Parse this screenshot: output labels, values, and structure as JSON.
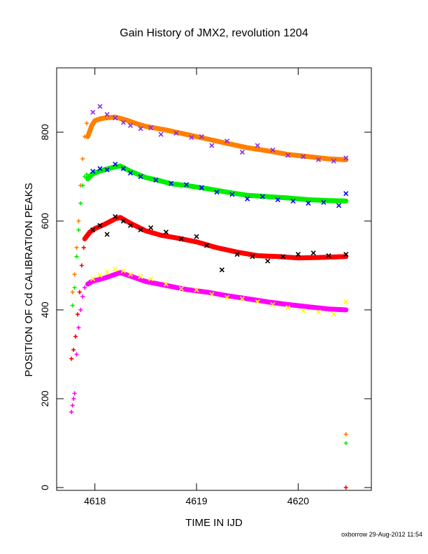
{
  "chart_data": {
    "type": "scatter",
    "title": "Gain History of JMX2, revolution 1204",
    "xlabel": "TIME IN IJD",
    "ylabel": "POSITION OF Cd CALIBRATION PEAKS",
    "footer": "oxborrow 29-Aug-2012 11:54",
    "xlim": [
      4617.72,
      4620.72
    ],
    "ylim": [
      0,
      950
    ],
    "x_ticks": [
      4618,
      4619,
      4620
    ],
    "x_tick_labels": [
      "4618",
      "4619",
      "4620"
    ],
    "y_ticks": [
      0,
      200,
      400,
      600,
      800
    ],
    "y_tick_labels": [
      "0",
      "200",
      "400",
      "600",
      "800"
    ],
    "grid": false,
    "legend": "none",
    "series": [
      {
        "color": "#ff8000",
        "marker": "line",
        "x": [
          4617.93,
          4617.97,
          4618.0,
          4618.05,
          4618.1,
          4618.2,
          4618.3,
          4618.4,
          4618.5,
          4618.7,
          4618.9,
          4619.1,
          4619.3,
          4619.5,
          4619.7,
          4619.9,
          4620.1,
          4620.3,
          4620.47
        ],
        "y": [
          790,
          815,
          826,
          830,
          832,
          834,
          828,
          820,
          813,
          805,
          795,
          785,
          775,
          765,
          758,
          750,
          745,
          740,
          738
        ]
      },
      {
        "color": "#8a2be2",
        "marker": "x",
        "x": [
          4617.98,
          4618.05,
          4618.12,
          4618.2,
          4618.28,
          4618.35,
          4618.45,
          4618.55,
          4618.65,
          4618.8,
          4618.95,
          4619.05,
          4619.15,
          4619.3,
          4619.45,
          4619.6,
          4619.75,
          4619.9,
          4620.05,
          4620.2,
          4620.35,
          4620.47
        ],
        "y": [
          845,
          858,
          840,
          832,
          822,
          815,
          808,
          810,
          795,
          798,
          788,
          790,
          770,
          780,
          755,
          770,
          760,
          748,
          745,
          738,
          735,
          742
        ]
      },
      {
        "color": "#00ee00",
        "marker": "line",
        "x": [
          4617.93,
          4617.97,
          4618.02,
          4618.1,
          4618.2,
          4618.25,
          4618.35,
          4618.5,
          4618.6,
          4618.75,
          4618.9,
          4619.1,
          4619.3,
          4619.5,
          4619.7,
          4619.9,
          4620.1,
          4620.3,
          4620.47
        ],
        "y": [
          695,
          705,
          710,
          716,
          722,
          724,
          712,
          698,
          693,
          684,
          680,
          673,
          665,
          658,
          655,
          652,
          648,
          646,
          645
        ]
      },
      {
        "color": "#0000ff",
        "marker": "x",
        "x": [
          4617.98,
          4618.05,
          4618.12,
          4618.2,
          4618.28,
          4618.35,
          4618.45,
          4618.6,
          4618.75,
          4618.9,
          4619.05,
          4619.2,
          4619.35,
          4619.5,
          4619.65,
          4619.8,
          4619.95,
          4620.1,
          4620.25,
          4620.4,
          4620.47
        ],
        "y": [
          712,
          718,
          715,
          728,
          718,
          708,
          700,
          692,
          685,
          682,
          675,
          665,
          660,
          650,
          655,
          648,
          645,
          640,
          642,
          635,
          662
        ]
      },
      {
        "color": "#ff0000",
        "marker": "line",
        "x": [
          4617.9,
          4617.95,
          4618.0,
          4618.1,
          4618.2,
          4618.25,
          4618.35,
          4618.5,
          4618.65,
          4618.8,
          4619.0,
          4619.2,
          4619.4,
          4619.6,
          4619.8,
          4620.0,
          4620.2,
          4620.47
        ],
        "y": [
          560,
          575,
          583,
          593,
          605,
          608,
          595,
          578,
          568,
          562,
          553,
          540,
          530,
          522,
          520,
          517,
          518,
          520
        ]
      },
      {
        "color": "#000000",
        "marker": "x",
        "x": [
          4617.98,
          4618.05,
          4618.12,
          4618.2,
          4618.28,
          4618.35,
          4618.45,
          4618.55,
          4618.7,
          4618.85,
          4619.0,
          4619.1,
          4619.25,
          4619.4,
          4619.55,
          4619.7,
          4619.85,
          4620.0,
          4620.15,
          4620.3,
          4620.47
        ],
        "y": [
          580,
          590,
          570,
          610,
          600,
          590,
          580,
          585,
          575,
          560,
          565,
          545,
          490,
          525,
          520,
          510,
          520,
          525,
          528,
          522,
          525
        ]
      },
      {
        "color": "#ff00ff",
        "marker": "line",
        "x": [
          4617.93,
          4617.97,
          4618.0,
          4618.1,
          4618.2,
          4618.25,
          4618.35,
          4618.5,
          4618.7,
          4618.9,
          4619.1,
          4619.3,
          4619.5,
          4619.7,
          4619.9,
          4620.1,
          4620.3,
          4620.47
        ],
        "y": [
          458,
          464,
          466,
          472,
          480,
          484,
          476,
          464,
          455,
          446,
          440,
          432,
          425,
          418,
          412,
          407,
          402,
          400
        ]
      },
      {
        "color": "#ffff00",
        "marker": "x",
        "x": [
          4617.98,
          4618.05,
          4618.12,
          4618.2,
          4618.28,
          4618.35,
          4618.45,
          4618.55,
          4618.7,
          4618.85,
          4619.0,
          4619.15,
          4619.3,
          4619.45,
          4619.6,
          4619.75,
          4619.9,
          4620.05,
          4620.2,
          4620.35,
          4620.47
        ],
        "y": [
          470,
          478,
          485,
          492,
          488,
          480,
          475,
          470,
          458,
          448,
          445,
          435,
          428,
          425,
          418,
          412,
          405,
          398,
          395,
          390,
          418
        ]
      },
      {
        "color": "#ff8000",
        "marker": "+",
        "x": [
          4617.78,
          4617.8,
          4617.82,
          4617.84,
          4617.86,
          4617.88,
          4617.9,
          4617.92,
          4617.95,
          4620.47
        ],
        "y": [
          440,
          480,
          540,
          600,
          680,
          740,
          790,
          820,
          800,
          120
        ]
      },
      {
        "color": "#00ee00",
        "marker": "+",
        "x": [
          4617.78,
          4617.8,
          4617.82,
          4617.84,
          4617.86,
          4617.88,
          4617.9,
          4617.92,
          4620.47
        ],
        "y": [
          410,
          450,
          520,
          580,
          640,
          680,
          700,
          705,
          100
        ]
      },
      {
        "color": "#ff0000",
        "marker": "+",
        "x": [
          4617.77,
          4617.79,
          4617.81,
          4617.83,
          4617.85,
          4617.87,
          4617.89,
          4620.47
        ],
        "y": [
          290,
          310,
          340,
          390,
          440,
          500,
          540,
          0
        ]
      },
      {
        "color": "#ff00ff",
        "marker": "+",
        "x": [
          4617.77,
          4617.78,
          4617.79,
          4617.8,
          4617.82,
          4617.84,
          4617.86,
          4617.88,
          4617.9
        ],
        "y": [
          170,
          185,
          200,
          212,
          300,
          360,
          400,
          430,
          450
        ]
      }
    ]
  }
}
